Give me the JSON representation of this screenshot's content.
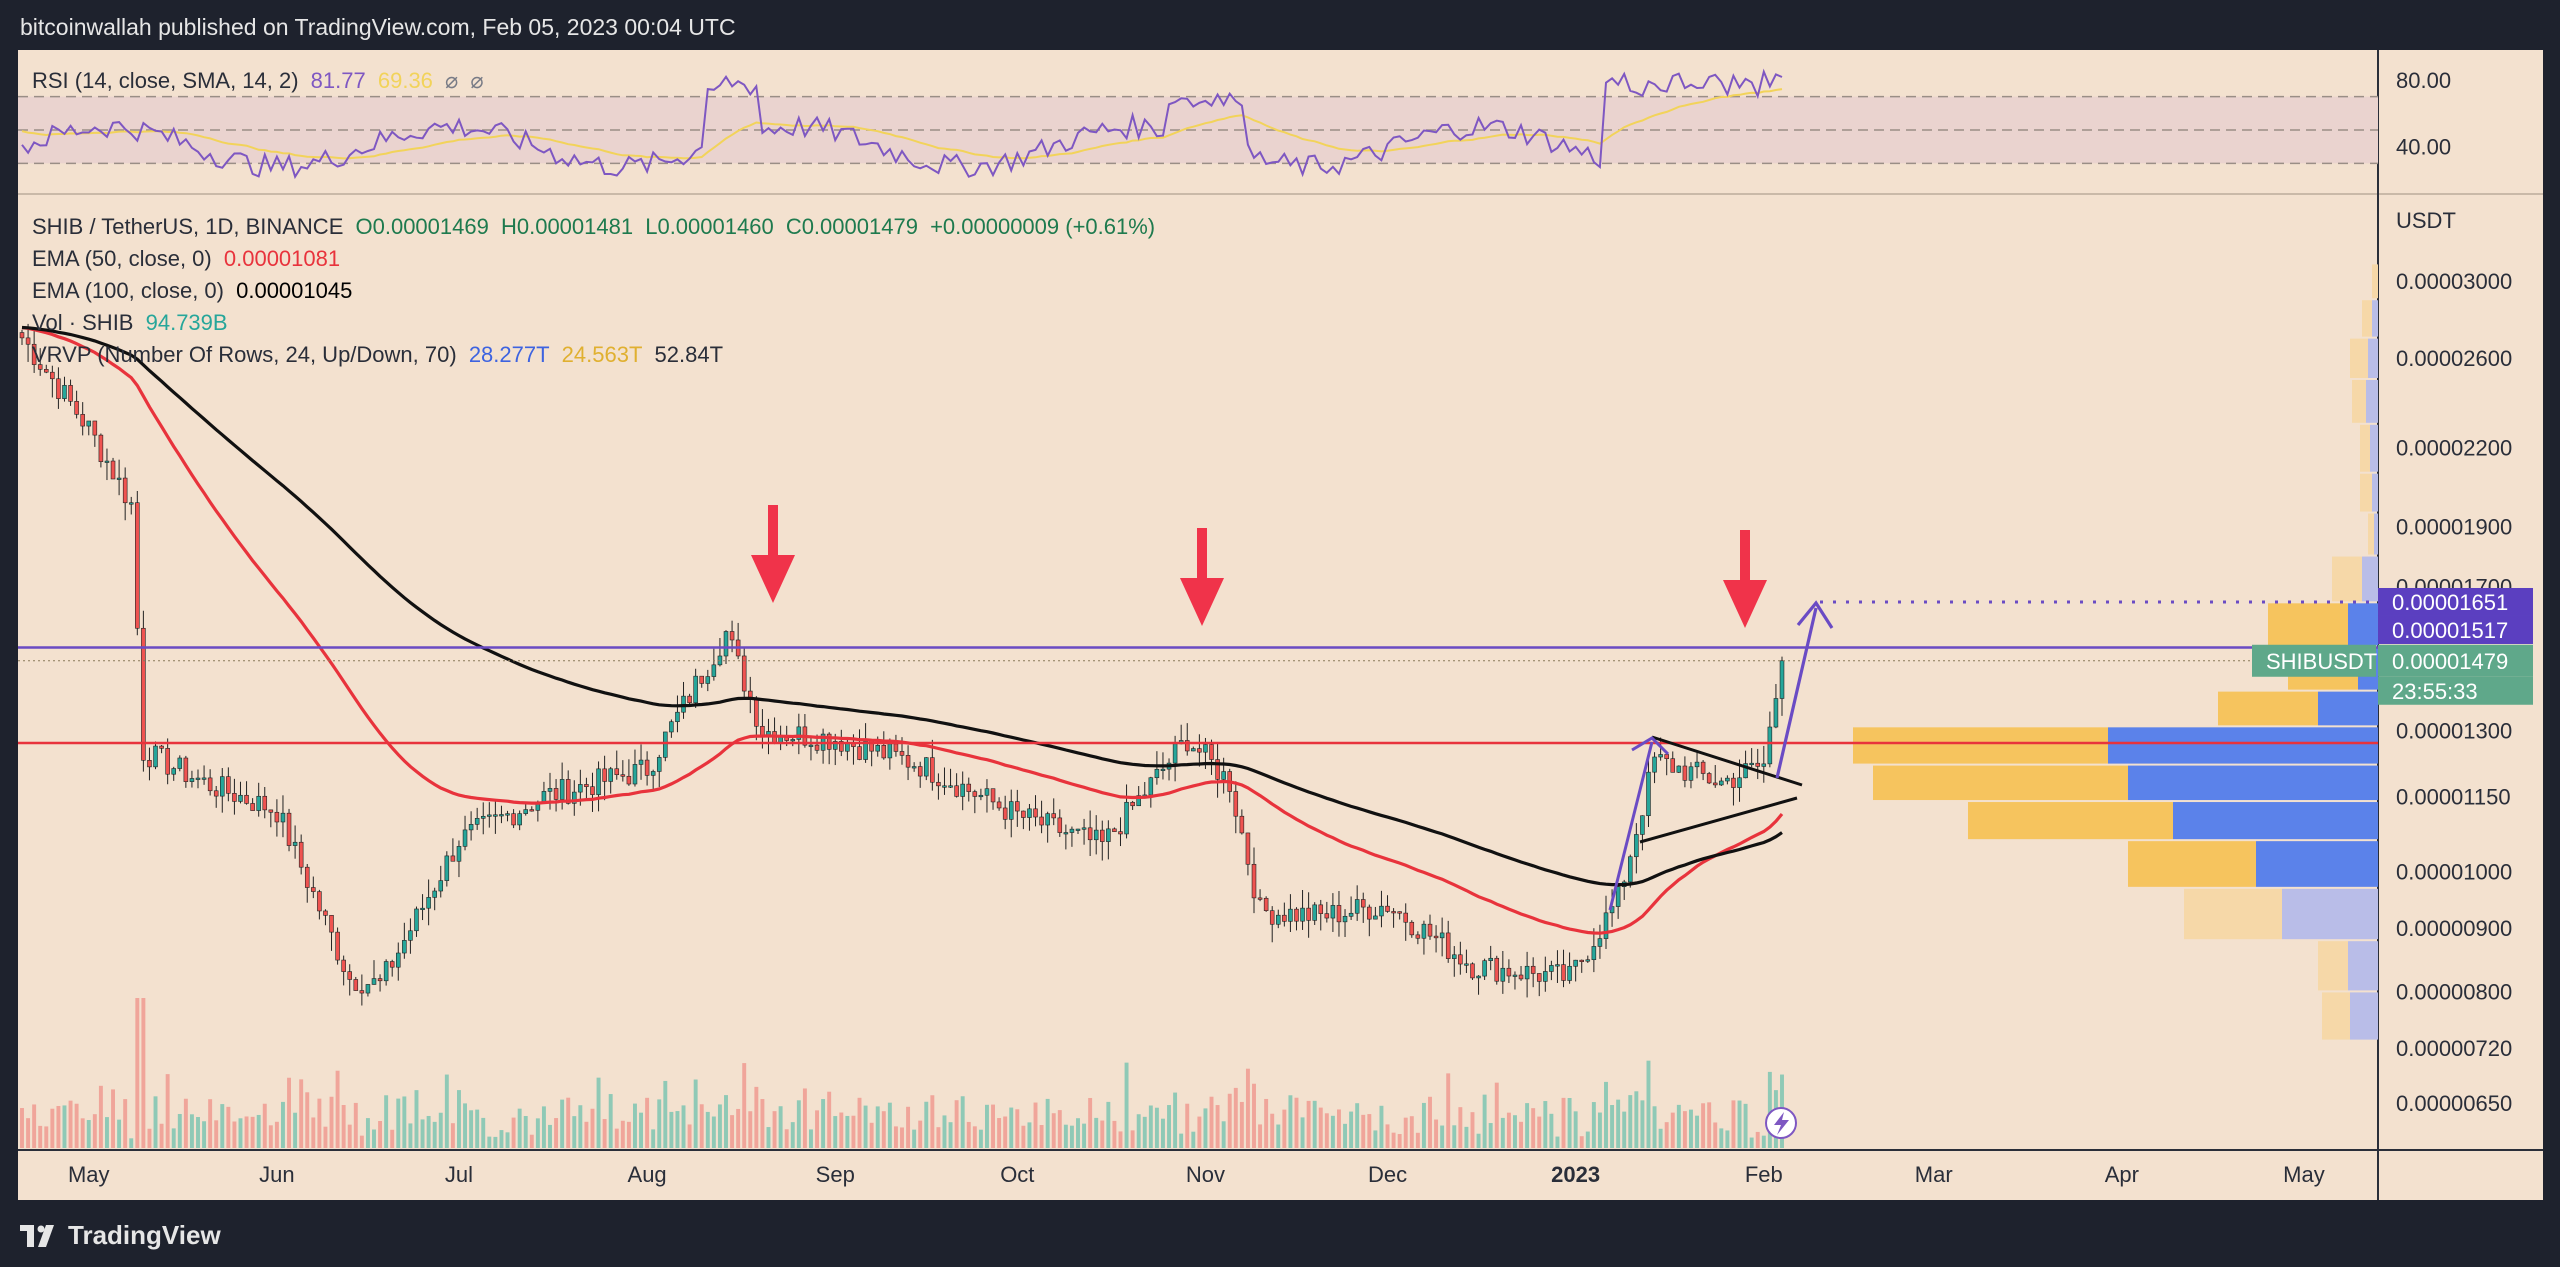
{
  "header": {
    "publisher": "bitcoinwallah published on TradingView.com, Feb 05, 2023 00:04 UTC"
  },
  "rsi_legend": {
    "label": "RSI (14, close, SMA, 14, 2)",
    "value": "81.77",
    "sma": "69.36",
    "x1": "⌀",
    "x2": "⌀"
  },
  "rsi_axis": {
    "ticks": [
      "80.00",
      "40.00"
    ]
  },
  "legend": {
    "pair": "SHIB / TetherUS, 1D, BINANCE",
    "o": "O0.00001469",
    "h": "H0.00001481",
    "l": "L0.00001460",
    "c": "C0.00001479",
    "chg": "+0.00000009 (+0.61%)",
    "ema50_label": "EMA (50, close, 0)",
    "ema50_value": "0.00001081",
    "ema100_label": "EMA (100, close, 0)",
    "ema100_value": "0.00001045",
    "vol_label": "Vol · SHIB",
    "vol_value": "94.739B",
    "vrvp_label": "VRVP (Number Of Rows, 24, Up/Down, 70)",
    "vrvp_up": "28.277T",
    "vrvp_down": "24.563T",
    "vrvp_total": "52.84T"
  },
  "price_axis": {
    "unit": "USDT",
    "ticks": [
      "0.00003000",
      "0.00002600",
      "0.00002200",
      "0.00001900",
      "0.00001700",
      "0.00001300",
      "0.00001150",
      "0.00001000",
      "0.00000900",
      "0.00000800",
      "0.00000720",
      "0.00000650"
    ],
    "label_target": "0.00001651",
    "label_resistance": "0.00001517",
    "label_symbol": "SHIBUSDT",
    "label_last": "0.00001479",
    "label_countdown": "23:55:33"
  },
  "time_axis": [
    "May",
    "Jun",
    "Jul",
    "Aug",
    "Sep",
    "Oct",
    "Nov",
    "Dec",
    "2023",
    "Feb",
    "Mar",
    "Apr",
    "May"
  ],
  "footer": {
    "brand": "TradingView"
  },
  "colors": {
    "up": "#26a69a",
    "down": "#ef5350",
    "ema50": "#e8333c",
    "ema100": "#111111",
    "resistance": "#6a4bc4",
    "support": "#e8333c",
    "arrow": "#f0334a",
    "rsi": "#7e57c2",
    "rsi_sma": "#f2d35a"
  },
  "chart_data": {
    "type": "candlestick",
    "title": "SHIB / TetherUS, 1D, BINANCE",
    "x": [
      "2022-04-20",
      "2022-05-01",
      "2022-05-08",
      "2022-05-10",
      "2022-05-20",
      "2022-06-01",
      "2022-06-13",
      "2022-06-18",
      "2022-07-01",
      "2022-07-15",
      "2022-08-01",
      "2022-08-14",
      "2022-08-20",
      "2022-09-01",
      "2022-09-15",
      "2022-10-01",
      "2022-10-15",
      "2022-10-29",
      "2022-11-05",
      "2022-11-10",
      "2022-11-20",
      "2022-12-01",
      "2022-12-15",
      "2022-12-31",
      "2023-01-08",
      "2023-01-14",
      "2023-01-25",
      "2023-02-01",
      "2023-02-04"
    ],
    "close": [
      2.7e-05,
      2.28e-05,
      1.98e-05,
      1.25e-05,
      1.18e-05,
      1.12e-05,
      8.2e-06,
      8.1e-06,
      1.06e-05,
      1.15e-05,
      1.21e-05,
      1.56e-05,
      1.3e-05,
      1.28e-05,
      1.22e-05,
      1.11e-05,
      1.05e-05,
      1.28e-05,
      1.18e-05,
      9.3e-06,
      9.2e-06,
      9.4e-06,
      8.4e-06,
      8.2e-06,
      9.5e-06,
      1.23e-05,
      1.18e-05,
      1.22e-05,
      1.48e-05
    ],
    "ema50_end": 1.081e-05,
    "ema100_end": 1.045e-05,
    "volume_last": "94.739B",
    "levels": {
      "resistance": 1.517e-05,
      "support": 1.27e-05,
      "target": 1.651e-05
    },
    "rsi_last": 81.77,
    "rsi_sma_last": 69.36,
    "annotations": [
      "rejection arrows at 0.00001517 (Aug, Nov, Feb)",
      "projected breakout arrow to 0.00001651"
    ]
  }
}
